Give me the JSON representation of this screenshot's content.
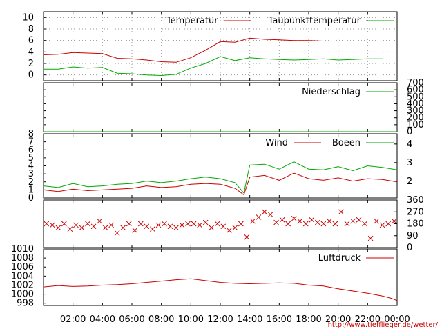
{
  "chart_data": [
    {
      "type": "line",
      "x_ticks": [
        "02:00",
        "04:00",
        "06:00",
        "08:00",
        "10:00",
        "12:00",
        "14:00",
        "16:00",
        "18:00",
        "20:00",
        "22:00",
        "00:00"
      ],
      "ylim": [
        -1,
        11
      ],
      "y_ticks": [
        0,
        2,
        4,
        6,
        8,
        10
      ],
      "grid": true,
      "legend": "top-right",
      "series": [
        {
          "name": "Temperatur",
          "color": "#cc0000",
          "x": [
            0,
            1,
            2,
            3,
            4,
            5,
            6,
            7,
            8,
            9,
            10,
            11,
            12,
            13,
            14,
            15,
            16,
            17,
            18,
            19,
            20,
            21,
            22,
            23
          ],
          "values": [
            3.5,
            3.6,
            3.9,
            3.8,
            3.7,
            2.9,
            2.8,
            2.6,
            2.3,
            2.2,
            3.0,
            4.3,
            5.8,
            5.7,
            6.4,
            6.2,
            6.1,
            6.0,
            6.0,
            5.9,
            5.9,
            5.9,
            5.9,
            5.9
          ]
        },
        {
          "name": "Taupunkttemperatur",
          "color": "#00aa00",
          "x": [
            0,
            1,
            2,
            3,
            4,
            5,
            6,
            7,
            8,
            9,
            10,
            11,
            12,
            13,
            14,
            15,
            16,
            17,
            18,
            19,
            20,
            21,
            22,
            23
          ],
          "values": [
            1.0,
            1.0,
            1.4,
            1.2,
            1.3,
            0.3,
            0.2,
            0.0,
            -0.1,
            0.1,
            1.2,
            2.0,
            3.2,
            2.5,
            3.0,
            2.8,
            2.7,
            2.6,
            2.7,
            2.8,
            2.6,
            2.7,
            2.8,
            2.8
          ]
        }
      ]
    },
    {
      "type": "line",
      "ylim": [
        0,
        700
      ],
      "y_ticks": [
        0,
        100,
        200,
        300,
        400,
        500,
        600,
        700
      ],
      "legend": "top-right",
      "series": [
        {
          "name": "Niederschlag",
          "color": "#00aa00",
          "x": [
            0,
            24
          ],
          "values": [
            0,
            0
          ]
        }
      ]
    },
    {
      "type": "line",
      "ylim": [
        0,
        8
      ],
      "y_ticks": [
        0,
        1,
        2,
        3,
        4,
        5,
        6,
        7,
        8
      ],
      "y2_ticks": [
        "2",
        "3",
        "4"
      ],
      "legend": "top-right",
      "series": [
        {
          "name": "Wind",
          "color": "#cc0000",
          "x": [
            0,
            1,
            2,
            3,
            4,
            5,
            6,
            7,
            8,
            9,
            10,
            11,
            12,
            13,
            13.6,
            14,
            15,
            16,
            17,
            18,
            19,
            20,
            21,
            22,
            23,
            24
          ],
          "values": [
            1.0,
            0.8,
            1.1,
            0.9,
            1.0,
            1.1,
            1.2,
            1.5,
            1.3,
            1.4,
            1.7,
            1.8,
            1.7,
            1.2,
            0.4,
            2.6,
            2.8,
            2.2,
            3.1,
            2.4,
            2.2,
            2.5,
            2.1,
            2.4,
            2.3,
            2.0
          ]
        },
        {
          "name": "Boeen",
          "color": "#00aa00",
          "x": [
            0,
            1,
            2,
            3,
            4,
            5,
            6,
            7,
            8,
            9,
            10,
            11,
            12,
            13,
            13.6,
            14,
            15,
            16,
            17,
            18,
            19,
            20,
            21,
            22,
            23,
            24
          ],
          "values": [
            1.5,
            1.3,
            1.8,
            1.4,
            1.5,
            1.7,
            1.8,
            2.1,
            1.9,
            2.1,
            2.4,
            2.6,
            2.4,
            1.9,
            0.6,
            4.1,
            4.2,
            3.6,
            4.5,
            3.6,
            3.5,
            3.9,
            3.4,
            4.0,
            3.8,
            3.5
          ]
        }
      ]
    },
    {
      "type": "scatter",
      "ylim": [
        0,
        360
      ],
      "y2_ticks": [
        0,
        90,
        180,
        270,
        360
      ],
      "series": [
        {
          "name": "",
          "color": "#cc0000",
          "x": [
            0.2,
            0.6,
            1.0,
            1.4,
            1.8,
            2.2,
            2.6,
            3.0,
            3.4,
            3.8,
            4.2,
            4.6,
            5.0,
            5.4,
            5.8,
            6.2,
            6.6,
            7.0,
            7.4,
            7.8,
            8.2,
            8.6,
            9.0,
            9.4,
            9.8,
            10.2,
            10.6,
            11.0,
            11.4,
            11.8,
            12.2,
            12.6,
            13.0,
            13.4,
            13.8,
            14.2,
            14.6,
            15.0,
            15.4,
            15.8,
            16.2,
            16.6,
            17.0,
            17.4,
            17.8,
            18.2,
            18.6,
            19.0,
            19.4,
            19.8,
            20.2,
            20.6,
            21.0,
            21.4,
            21.8,
            22.2,
            22.6,
            23.0,
            23.4,
            23.8
          ],
          "values": [
            180,
            170,
            150,
            180,
            140,
            170,
            150,
            180,
            160,
            200,
            150,
            170,
            110,
            150,
            180,
            130,
            180,
            160,
            140,
            170,
            180,
            160,
            150,
            170,
            180,
            180,
            170,
            190,
            150,
            180,
            160,
            130,
            150,
            180,
            80,
            200,
            230,
            270,
            250,
            190,
            210,
            180,
            220,
            200,
            180,
            210,
            190,
            180,
            200,
            180,
            270,
            180,
            200,
            210,
            180,
            70,
            200,
            170,
            180,
            200
          ]
        }
      ]
    },
    {
      "type": "line",
      "ylim": [
        997.5,
        1010
      ],
      "y_ticks": [
        998,
        1000,
        1002,
        1004,
        1006,
        1008,
        1010
      ],
      "legend": "top-right",
      "series": [
        {
          "name": "Luftdruck",
          "color": "#cc0000",
          "x": [
            0,
            1,
            2,
            3,
            4,
            5,
            6,
            7,
            8,
            9,
            10,
            11,
            12,
            13,
            14,
            15,
            16,
            17,
            18,
            19,
            20,
            21,
            22,
            23,
            23.6,
            24
          ],
          "values": [
            1001.6,
            1001.9,
            1001.7,
            1001.8,
            1002.0,
            1002.1,
            1002.3,
            1002.6,
            1002.9,
            1003.2,
            1003.4,
            1003.0,
            1002.6,
            1002.4,
            1002.3,
            1002.4,
            1002.5,
            1002.4,
            1002.0,
            1001.8,
            1001.2,
            1000.7,
            1000.2,
            999.6,
            999.1,
            998.6
          ]
        }
      ]
    }
  ],
  "source_url": "http://www.tiefflieger.de/wetter/"
}
